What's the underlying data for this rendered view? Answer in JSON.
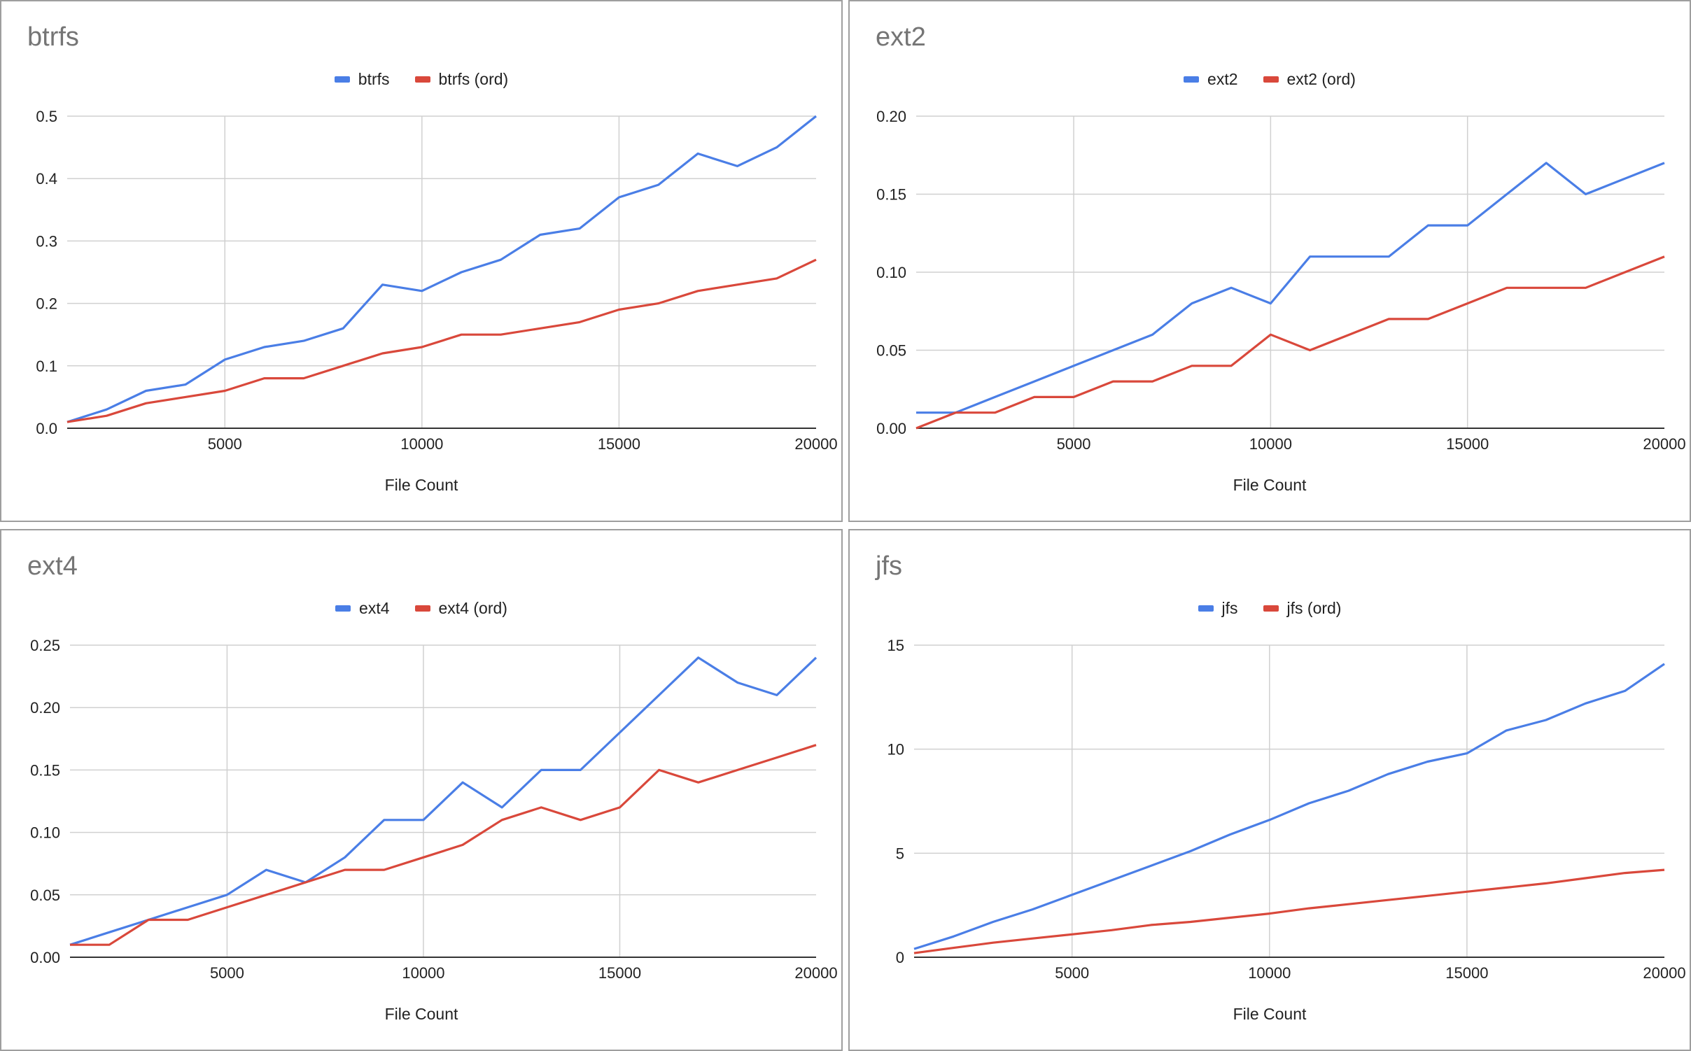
{
  "chart_data": [
    {
      "type": "line",
      "title": "btrfs",
      "xlabel": "File Count",
      "ylabel": "",
      "xlim": [
        1000,
        20000
      ],
      "ylim": [
        0,
        0.5
      ],
      "xticks": [
        "5000",
        "10000",
        "15000",
        "20000"
      ],
      "yticks": [
        "0.0",
        "0.1",
        "0.2",
        "0.3",
        "0.4",
        "0.5"
      ],
      "grid": true,
      "legend": "top",
      "x": [
        1000,
        2000,
        3000,
        4000,
        5000,
        6000,
        7000,
        8000,
        9000,
        10000,
        11000,
        12000,
        13000,
        14000,
        15000,
        16000,
        17000,
        18000,
        19000,
        20000
      ],
      "series": [
        {
          "name": "btrfs",
          "color": "#4a7ee6",
          "values": [
            0.01,
            0.03,
            0.06,
            0.07,
            0.11,
            0.13,
            0.14,
            0.16,
            0.23,
            0.22,
            0.25,
            0.27,
            0.31,
            0.32,
            0.37,
            0.39,
            0.44,
            0.42,
            0.45,
            0.5
          ]
        },
        {
          "name": "btrfs (ord)",
          "color": "#d9483b",
          "values": [
            0.01,
            0.02,
            0.04,
            0.05,
            0.06,
            0.08,
            0.08,
            0.1,
            0.12,
            0.13,
            0.15,
            0.15,
            0.16,
            0.17,
            0.19,
            0.2,
            0.22,
            0.23,
            0.24,
            0.27
          ]
        }
      ]
    },
    {
      "type": "line",
      "title": "ext2",
      "xlabel": "File Count",
      "ylabel": "",
      "xlim": [
        1000,
        20000
      ],
      "ylim": [
        0,
        0.2
      ],
      "xticks": [
        "5000",
        "10000",
        "15000",
        "20000"
      ],
      "yticks": [
        "0.00",
        "0.05",
        "0.10",
        "0.15",
        "0.20"
      ],
      "grid": true,
      "legend": "top",
      "x": [
        1000,
        2000,
        3000,
        4000,
        5000,
        6000,
        7000,
        8000,
        9000,
        10000,
        11000,
        12000,
        13000,
        14000,
        15000,
        16000,
        17000,
        18000,
        19000,
        20000
      ],
      "series": [
        {
          "name": "ext2",
          "color": "#4a7ee6",
          "values": [
            0.01,
            0.01,
            0.02,
            0.03,
            0.04,
            0.05,
            0.06,
            0.08,
            0.09,
            0.08,
            0.11,
            0.11,
            0.11,
            0.13,
            0.13,
            0.15,
            0.17,
            0.15,
            0.16,
            0.17
          ]
        },
        {
          "name": "ext2 (ord)",
          "color": "#d9483b",
          "values": [
            0.0,
            0.01,
            0.01,
            0.02,
            0.02,
            0.03,
            0.03,
            0.04,
            0.04,
            0.06,
            0.05,
            0.06,
            0.07,
            0.07,
            0.08,
            0.09,
            0.09,
            0.09,
            0.1,
            0.11
          ]
        }
      ]
    },
    {
      "type": "line",
      "title": "ext4",
      "xlabel": "File Count",
      "ylabel": "",
      "xlim": [
        1000,
        20000
      ],
      "ylim": [
        0,
        0.25
      ],
      "xticks": [
        "5000",
        "10000",
        "15000",
        "20000"
      ],
      "yticks": [
        "0.00",
        "0.05",
        "0.10",
        "0.15",
        "0.20",
        "0.25"
      ],
      "grid": true,
      "legend": "top",
      "x": [
        1000,
        2000,
        3000,
        4000,
        5000,
        6000,
        7000,
        8000,
        9000,
        10000,
        11000,
        12000,
        13000,
        14000,
        15000,
        16000,
        17000,
        18000,
        19000,
        20000
      ],
      "series": [
        {
          "name": "ext4",
          "color": "#4a7ee6",
          "values": [
            0.01,
            0.02,
            0.03,
            0.04,
            0.05,
            0.07,
            0.06,
            0.08,
            0.11,
            0.11,
            0.14,
            0.12,
            0.15,
            0.15,
            0.18,
            0.21,
            0.24,
            0.22,
            0.21,
            0.24
          ]
        },
        {
          "name": "ext4 (ord)",
          "color": "#d9483b",
          "values": [
            0.01,
            0.01,
            0.03,
            0.03,
            0.04,
            0.05,
            0.06,
            0.07,
            0.07,
            0.08,
            0.09,
            0.11,
            0.12,
            0.11,
            0.12,
            0.15,
            0.14,
            0.15,
            0.16,
            0.17
          ]
        }
      ]
    },
    {
      "type": "line",
      "title": "jfs",
      "xlabel": "File Count",
      "ylabel": "",
      "xlim": [
        1000,
        20000
      ],
      "ylim": [
        0,
        15
      ],
      "xticks": [
        "5000",
        "10000",
        "15000",
        "20000"
      ],
      "yticks": [
        "0",
        "5",
        "10",
        "15"
      ],
      "grid": true,
      "legend": "top",
      "x": [
        1000,
        2000,
        3000,
        4000,
        5000,
        6000,
        7000,
        8000,
        9000,
        10000,
        11000,
        12000,
        13000,
        14000,
        15000,
        16000,
        17000,
        18000,
        19000,
        20000
      ],
      "series": [
        {
          "name": "jfs",
          "color": "#4a7ee6",
          "values": [
            0.4,
            1.0,
            1.7,
            2.3,
            3.0,
            3.7,
            4.4,
            5.1,
            5.9,
            6.6,
            7.4,
            8.0,
            8.8,
            9.4,
            9.8,
            10.9,
            11.4,
            12.2,
            12.8,
            14.1
          ]
        },
        {
          "name": "jfs (ord)",
          "color": "#d9483b",
          "values": [
            0.2,
            0.45,
            0.7,
            0.9,
            1.1,
            1.3,
            1.55,
            1.7,
            1.9,
            2.1,
            2.35,
            2.55,
            2.75,
            2.95,
            3.15,
            3.35,
            3.55,
            3.8,
            4.05,
            4.2
          ]
        }
      ]
    }
  ]
}
